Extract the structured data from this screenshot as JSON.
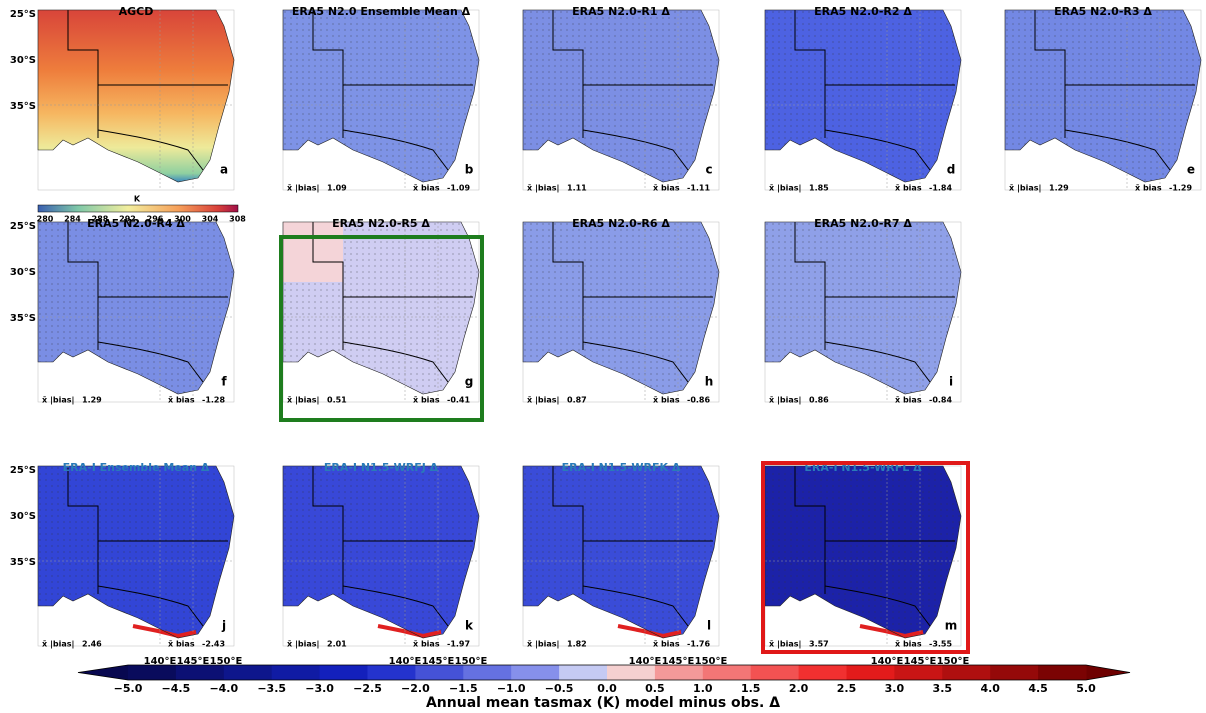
{
  "panels": [
    {
      "title": "AGCD",
      "letter": "a"
    },
    {
      "title": "ERA5 N2.0 Ensemble Mean Δ",
      "letter": "b",
      "abs_bias": "1.09",
      "bias": "-1.09"
    },
    {
      "title": "ERA5 N2.0-R1 Δ",
      "letter": "c",
      "abs_bias": "1.11",
      "bias": "-1.11"
    },
    {
      "title": "ERA5 N2.0-R2 Δ",
      "letter": "d",
      "abs_bias": "1.85",
      "bias": "-1.84"
    },
    {
      "title": "ERA5 N2.0-R3 Δ",
      "letter": "e",
      "abs_bias": "1.29",
      "bias": "-1.29"
    },
    {
      "title": "ERA5 N2.0-R4 Δ",
      "letter": "f",
      "abs_bias": "1.29",
      "bias": "-1.28"
    },
    {
      "title": "ERA5 N2.0-R5 Δ",
      "letter": "g",
      "abs_bias": "0.51",
      "bias": "-0.41"
    },
    {
      "title": "ERA5 N2.0-R6 Δ",
      "letter": "h",
      "abs_bias": "0.87",
      "bias": "-0.86"
    },
    {
      "title": "ERA5 N2.0-R7 Δ",
      "letter": "i",
      "abs_bias": "0.86",
      "bias": "-0.84"
    },
    {
      "title": "ERA-I Ensemble Mean Δ",
      "letter": "j",
      "abs_bias": "2.46",
      "bias": "-2.43"
    },
    {
      "title": "ERA-I N1.5-WRFJ Δ",
      "letter": "k",
      "abs_bias": "2.01",
      "bias": "-1.97"
    },
    {
      "title": "ERA-I N1.5-WRFK Δ",
      "letter": "l",
      "abs_bias": "1.82",
      "bias": "-1.76"
    },
    {
      "title": "ERA-I N1.5-WRFL Δ",
      "letter": "m",
      "abs_bias": "3.57",
      "bias": "-3.55"
    }
  ],
  "stat_labels": {
    "abs": "x̄ |bias|",
    "bias": "x̄ bias"
  },
  "lat_labels": [
    "25°S",
    "30°S",
    "35°S"
  ],
  "lon_labels": [
    "140°E",
    "145°E",
    "150°E"
  ],
  "agcd_colorbar": {
    "unit": "K",
    "ticks": [
      "280",
      "284",
      "288",
      "292",
      "296",
      "300",
      "304",
      "308"
    ]
  },
  "colorbar": {
    "ticks": [
      "−5.0",
      "−4.5",
      "−4.0",
      "−3.5",
      "−3.0",
      "−2.5",
      "−2.0",
      "−1.5",
      "−1.0",
      "−0.5",
      "0.0",
      "0.5",
      "1.0",
      "1.5",
      "2.0",
      "2.5",
      "3.0",
      "3.5",
      "4.0",
      "4.5",
      "5.0"
    ],
    "label": "Annual mean tasmax (K) model minus obs. Δ"
  }
}
